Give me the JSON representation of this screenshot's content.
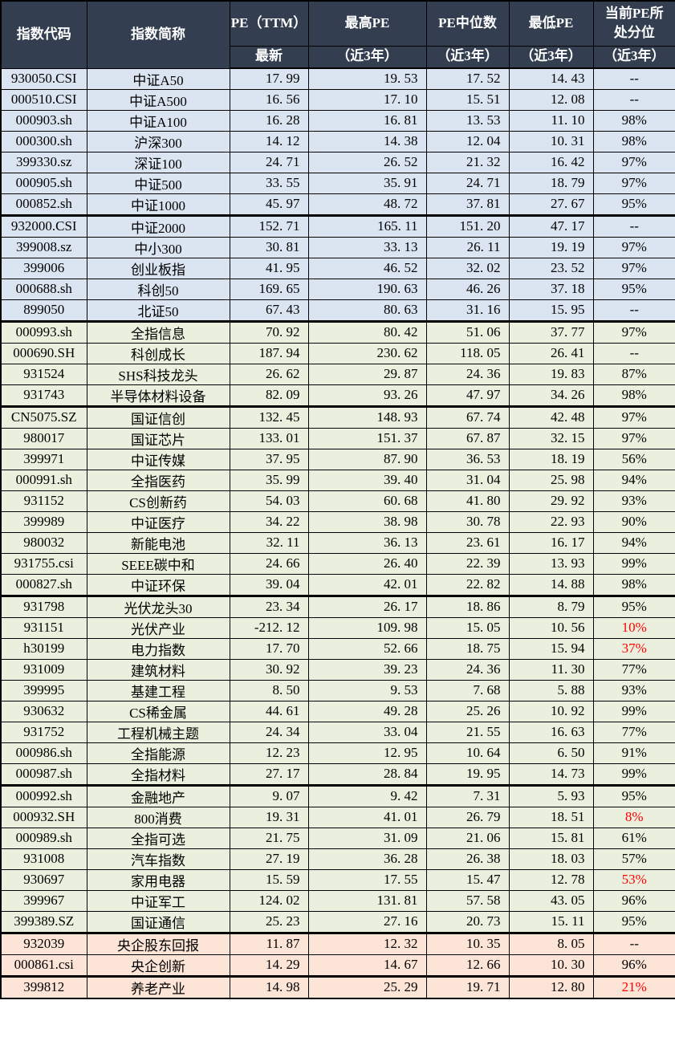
{
  "colors": {
    "header-bg": "#333F50",
    "header-text": "#FFFFFF",
    "row-blue": "#DBE5F1",
    "row-green": "#EAF0DD",
    "row-pink": "#FCE4D6",
    "text": "#000000",
    "percentile-red": "#FF0000",
    "border": "#000000"
  },
  "chart_data": {
    "type": "table",
    "headers": {
      "code": "指数代码",
      "name": "指数简称",
      "pe": "PE（TTM）",
      "pe_sub": "最新",
      "max": "最高PE",
      "median": "PE中位数",
      "min": "最低PE",
      "pct": "当前PE所\n处分位",
      "range_sub": "（近3年）"
    },
    "rows": [
      {
        "code": "930050.CSI",
        "name": "中证A50",
        "pe": "17.99",
        "max": "19.53",
        "median": "17.52",
        "min": "14.43",
        "pct": "--",
        "bg": "blue"
      },
      {
        "code": "000510.CSI",
        "name": "中证A500",
        "pe": "16.56",
        "max": "17.10",
        "median": "15.51",
        "min": "12.08",
        "pct": "--",
        "bg": "blue"
      },
      {
        "code": "000903.sh",
        "name": "中证A100",
        "pe": "16.28",
        "max": "16.81",
        "median": "13.53",
        "min": "11.10",
        "pct": "98%",
        "bg": "blue"
      },
      {
        "code": "000300.sh",
        "name": "沪深300",
        "pe": "14.12",
        "max": "14.38",
        "median": "12.04",
        "min": "10.31",
        "pct": "98%",
        "bg": "blue"
      },
      {
        "code": "399330.sz",
        "name": "深证100",
        "pe": "24.71",
        "max": "26.52",
        "median": "21.32",
        "min": "16.42",
        "pct": "97%",
        "bg": "blue"
      },
      {
        "code": "000905.sh",
        "name": "中证500",
        "pe": "33.55",
        "max": "35.91",
        "median": "24.71",
        "min": "18.79",
        "pct": "97%",
        "bg": "blue"
      },
      {
        "code": "000852.sh",
        "name": "中证1000",
        "pe": "45.97",
        "max": "48.72",
        "median": "37.81",
        "min": "27.67",
        "pct": "95%",
        "bg": "blue",
        "sep": true
      },
      {
        "code": "932000.CSI",
        "name": "中证2000",
        "pe": "152.71",
        "max": "165.11",
        "median": "151.20",
        "min": "47.17",
        "pct": "--",
        "bg": "blue"
      },
      {
        "code": "399008.sz",
        "name": "中小300",
        "pe": "30.81",
        "max": "33.13",
        "median": "26.11",
        "min": "19.19",
        "pct": "97%",
        "bg": "blue"
      },
      {
        "code": "399006",
        "name": "创业板指",
        "pe": "41.95",
        "max": "46.52",
        "median": "32.02",
        "min": "23.52",
        "pct": "97%",
        "bg": "blue"
      },
      {
        "code": "000688.sh",
        "name": "科创50",
        "pe": "169.65",
        "max": "190.63",
        "median": "46.26",
        "min": "37.18",
        "pct": "95%",
        "bg": "blue"
      },
      {
        "code": "899050",
        "name": "北证50",
        "pe": "67.43",
        "max": "80.63",
        "median": "31.16",
        "min": "15.95",
        "pct": "--",
        "bg": "blue",
        "sep": true
      },
      {
        "code": "000993.sh",
        "name": "全指信息",
        "pe": "70.92",
        "max": "80.42",
        "median": "51.06",
        "min": "37.77",
        "pct": "97%",
        "bg": "green"
      },
      {
        "code": "000690.SH",
        "name": "科创成长",
        "pe": "187.94",
        "max": "230.62",
        "median": "118.05",
        "min": "26.41",
        "pct": "--",
        "bg": "green"
      },
      {
        "code": "931524",
        "name": "SHS科技龙头",
        "pe": "26.62",
        "max": "29.87",
        "median": "24.36",
        "min": "19.83",
        "pct": "87%",
        "bg": "green"
      },
      {
        "code": "931743",
        "name": "半导体材料设备",
        "pe": "82.09",
        "max": "93.26",
        "median": "47.97",
        "min": "34.26",
        "pct": "98%",
        "bg": "green",
        "sep": true
      },
      {
        "code": "CN5075.SZ",
        "name": "国证信创",
        "pe": "132.45",
        "max": "148.93",
        "median": "67.74",
        "min": "42.48",
        "pct": "97%",
        "bg": "green"
      },
      {
        "code": "980017",
        "name": "国证芯片",
        "pe": "133.01",
        "max": "151.37",
        "median": "67.87",
        "min": "32.15",
        "pct": "97%",
        "bg": "green"
      },
      {
        "code": "399971",
        "name": "中证传媒",
        "pe": "37.95",
        "max": "87.90",
        "median": "36.53",
        "min": "18.19",
        "pct": "56%",
        "bg": "green"
      },
      {
        "code": "000991.sh",
        "name": "全指医药",
        "pe": "35.99",
        "max": "39.40",
        "median": "31.04",
        "min": "25.98",
        "pct": "94%",
        "bg": "green"
      },
      {
        "code": "931152",
        "name": "CS创新药",
        "pe": "54.03",
        "max": "60.68",
        "median": "41.80",
        "min": "29.92",
        "pct": "93%",
        "bg": "green"
      },
      {
        "code": "399989",
        "name": "中证医疗",
        "pe": "34.22",
        "max": "38.98",
        "median": "30.78",
        "min": "22.93",
        "pct": "90%",
        "bg": "green"
      },
      {
        "code": "980032",
        "name": "新能电池",
        "pe": "32.11",
        "max": "36.13",
        "median": "23.61",
        "min": "16.17",
        "pct": "94%",
        "bg": "green"
      },
      {
        "code": "931755.csi",
        "name": "SEEE碳中和",
        "pe": "24.66",
        "max": "26.40",
        "median": "22.39",
        "min": "13.93",
        "pct": "99%",
        "bg": "green"
      },
      {
        "code": "000827.sh",
        "name": "中证环保",
        "pe": "39.04",
        "max": "42.01",
        "median": "22.82",
        "min": "14.88",
        "pct": "98%",
        "bg": "green",
        "sep": true
      },
      {
        "code": "931798",
        "name": "光伏龙头30",
        "pe": "23.34",
        "max": "26.17",
        "median": "18.86",
        "min": "8.79",
        "pct": "95%",
        "bg": "green"
      },
      {
        "code": "931151",
        "name": "光伏产业",
        "pe": "-212.12",
        "max": "109.98",
        "median": "15.05",
        "min": "10.56",
        "pct": "10%",
        "bg": "green",
        "red": true
      },
      {
        "code": "h30199",
        "name": "电力指数",
        "pe": "17.70",
        "max": "52.66",
        "median": "18.75",
        "min": "15.94",
        "pct": "37%",
        "bg": "green",
        "red": true
      },
      {
        "code": "931009",
        "name": "建筑材料",
        "pe": "30.92",
        "max": "39.23",
        "median": "24.36",
        "min": "11.30",
        "pct": "77%",
        "bg": "green"
      },
      {
        "code": "399995",
        "name": "基建工程",
        "pe": "8.50",
        "max": "9.53",
        "median": "7.68",
        "min": "5.88",
        "pct": "93%",
        "bg": "green"
      },
      {
        "code": "930632",
        "name": "CS稀金属",
        "pe": "44.61",
        "max": "49.28",
        "median": "25.26",
        "min": "10.92",
        "pct": "99%",
        "bg": "green"
      },
      {
        "code": "931752",
        "name": "工程机械主题",
        "pe": "24.34",
        "max": "33.04",
        "median": "21.55",
        "min": "16.63",
        "pct": "77%",
        "bg": "green"
      },
      {
        "code": "000986.sh",
        "name": "全指能源",
        "pe": "12.23",
        "max": "12.95",
        "median": "10.64",
        "min": "6.50",
        "pct": "91%",
        "bg": "green"
      },
      {
        "code": "000987.sh",
        "name": "全指材料",
        "pe": "27.17",
        "max": "28.84",
        "median": "19.95",
        "min": "14.73",
        "pct": "99%",
        "bg": "green",
        "sep": true
      },
      {
        "code": "000992.sh",
        "name": "金融地产",
        "pe": "9.07",
        "max": "9.42",
        "median": "7.31",
        "min": "5.93",
        "pct": "95%",
        "bg": "green"
      },
      {
        "code": "000932.SH",
        "name": "800消费",
        "pe": "19.31",
        "max": "41.01",
        "median": "26.79",
        "min": "18.51",
        "pct": "8%",
        "bg": "green",
        "red": true
      },
      {
        "code": "000989.sh",
        "name": "全指可选",
        "pe": "21.75",
        "max": "31.09",
        "median": "21.06",
        "min": "15.81",
        "pct": "61%",
        "bg": "green"
      },
      {
        "code": "931008",
        "name": "汽车指数",
        "pe": "27.19",
        "max": "36.28",
        "median": "26.38",
        "min": "18.03",
        "pct": "57%",
        "bg": "green"
      },
      {
        "code": "930697",
        "name": "家用电器",
        "pe": "15.59",
        "max": "17.55",
        "median": "15.47",
        "min": "12.78",
        "pct": "53%",
        "bg": "green",
        "red": true
      },
      {
        "code": "399967",
        "name": "中证军工",
        "pe": "124.02",
        "max": "131.81",
        "median": "57.58",
        "min": "43.05",
        "pct": "96%",
        "bg": "green"
      },
      {
        "code": "399389.SZ",
        "name": "国证通信",
        "pe": "25.23",
        "max": "27.16",
        "median": "20.73",
        "min": "15.11",
        "pct": "95%",
        "bg": "green",
        "sep": true
      },
      {
        "code": "932039",
        "name": "央企股东回报",
        "pe": "11.87",
        "max": "12.32",
        "median": "10.35",
        "min": "8.05",
        "pct": "--",
        "bg": "pink"
      },
      {
        "code": "000861.csi",
        "name": "央企创新",
        "pe": "14.29",
        "max": "14.67",
        "median": "12.66",
        "min": "10.30",
        "pct": "96%",
        "bg": "pink",
        "sep": true
      },
      {
        "code": "399812",
        "name": "养老产业",
        "pe": "14.98",
        "max": "25.29",
        "median": "19.71",
        "min": "12.80",
        "pct": "21%",
        "bg": "pink",
        "red": true
      }
    ]
  }
}
